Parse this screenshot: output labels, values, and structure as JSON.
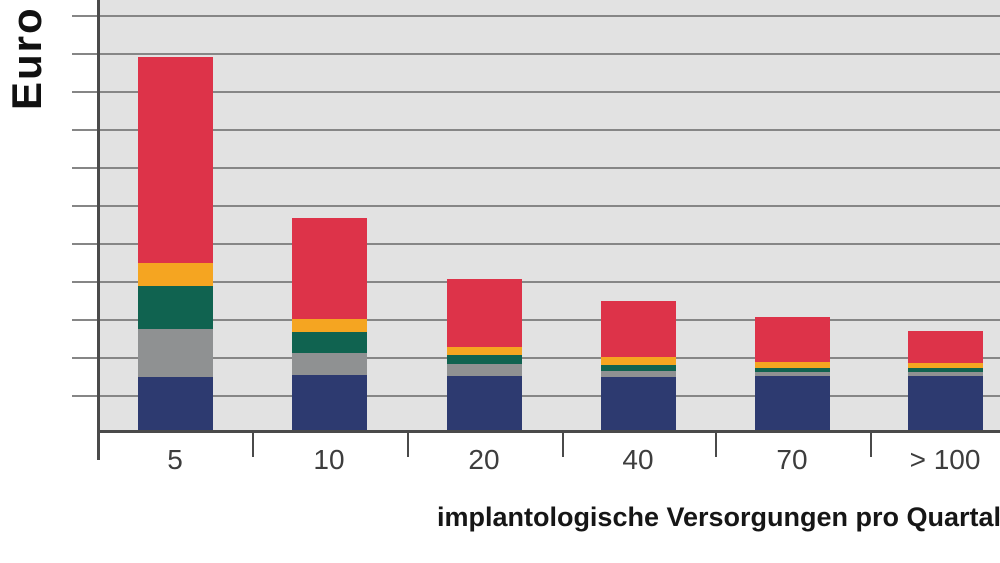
{
  "figure": {
    "background_color": "#ffffff",
    "plot_background_color": "#e2e2e2",
    "grid_color": "#868686",
    "axis_color": "#4a4a4a",
    "tick_label_color": "#3d3d3d",
    "title_color": "#161616"
  },
  "chart_data": {
    "type": "bar",
    "stacked": true,
    "title": "",
    "xlabel": "implantologische Versorgungen pro Quartal",
    "ylabel": "Euro",
    "categories": [
      "5",
      "10",
      "20",
      "40",
      "70",
      "> 100"
    ],
    "series": [
      {
        "name": "navy-bottom-segment",
        "color": "#2d3a70",
        "values": [
          1.4,
          1.45,
          1.42,
          1.4,
          1.42,
          1.42
        ]
      },
      {
        "name": "gray-segment",
        "color": "#8f9192",
        "values": [
          1.27,
          0.58,
          0.32,
          0.16,
          0.11,
          0.11
        ]
      },
      {
        "name": "green-segment",
        "color": "#106350",
        "values": [
          1.13,
          0.55,
          0.24,
          0.16,
          0.11,
          0.11
        ]
      },
      {
        "name": "orange-segment",
        "color": "#f5a521",
        "values": [
          0.61,
          0.34,
          0.21,
          0.21,
          0.16,
          0.13
        ]
      },
      {
        "name": "red-top-segment",
        "color": "#dd3349",
        "values": [
          5.44,
          2.66,
          1.79,
          1.48,
          1.19,
          0.84
        ]
      }
    ],
    "ylim": [
      0,
      11.4
    ],
    "y_unit": "gridline-interval (numeric y tick labels are cropped out of view)",
    "grid": "horizontal",
    "legend": "none"
  }
}
